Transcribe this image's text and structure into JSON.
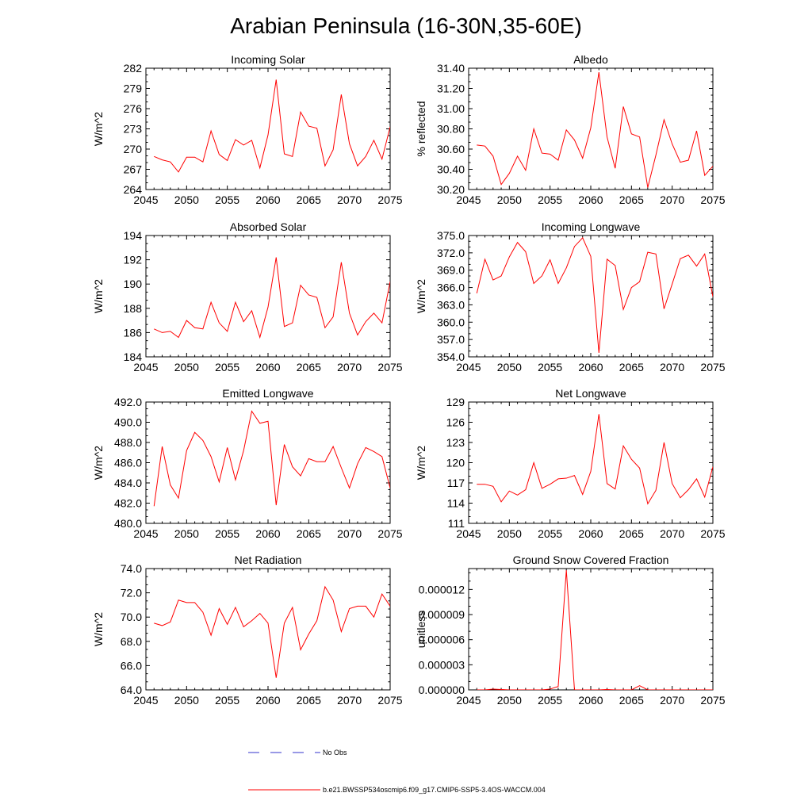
{
  "page_title": "Arabian Peninsula (16-30N,35-60E)",
  "colors": {
    "series": "#ff0000",
    "obs": "#3333cc",
    "axis": "#000000"
  },
  "legend": {
    "obs_label": "No Obs",
    "model_label": "b.e21.BWSSP534oscmip6.f09_g17.CMIP6-SSP5-3.4OS-WACCM.004"
  },
  "chart_data": [
    {
      "type": "line",
      "title": "Incoming Solar",
      "xlabel": "",
      "ylabel": "W/m^2",
      "xlim": [
        2045,
        2075
      ],
      "ylim": [
        264,
        282
      ],
      "xticks": [
        2045,
        2050,
        2055,
        2060,
        2065,
        2070,
        2075
      ],
      "yticks": [
        264,
        267,
        270,
        273,
        276,
        279,
        282
      ],
      "ytick_labels": [
        "264",
        "267",
        "270",
        "273",
        "276",
        "279",
        "282"
      ],
      "x": [
        2046,
        2047,
        2048,
        2049,
        2050,
        2051,
        2052,
        2053,
        2054,
        2055,
        2056,
        2057,
        2058,
        2059,
        2060,
        2061,
        2062,
        2063,
        2064,
        2065,
        2066,
        2067,
        2068,
        2069,
        2070,
        2071,
        2072,
        2073,
        2074,
        2075
      ],
      "values": [
        268.9,
        268.4,
        268.1,
        266.6,
        268.8,
        268.8,
        268.1,
        272.7,
        269.2,
        268.3,
        271.4,
        270.6,
        271.3,
        267.2,
        272.1,
        280.3,
        269.3,
        268.9,
        275.5,
        273.4,
        273.1,
        267.5,
        269.9,
        278.1,
        270.8,
        267.5,
        268.9,
        271.3,
        268.5,
        273.3
      ]
    },
    {
      "type": "line",
      "title": "Albedo",
      "xlabel": "",
      "ylabel": "% reflected",
      "xlim": [
        2045,
        2075
      ],
      "ylim": [
        30.2,
        31.4
      ],
      "xticks": [
        2045,
        2050,
        2055,
        2060,
        2065,
        2070,
        2075
      ],
      "yticks": [
        30.2,
        30.4,
        30.6,
        30.8,
        31.0,
        31.2,
        31.4
      ],
      "ytick_labels": [
        "30.20",
        "30.40",
        "30.60",
        "30.80",
        "31.00",
        "31.20",
        "31.40"
      ],
      "x": [
        2046,
        2047,
        2048,
        2049,
        2050,
        2051,
        2052,
        2053,
        2054,
        2055,
        2056,
        2057,
        2058,
        2059,
        2060,
        2061,
        2062,
        2063,
        2064,
        2065,
        2066,
        2067,
        2068,
        2069,
        2070,
        2071,
        2072,
        2073,
        2074,
        2075
      ],
      "values": [
        30.64,
        30.63,
        30.53,
        30.25,
        30.36,
        30.53,
        30.39,
        30.8,
        30.56,
        30.55,
        30.49,
        30.79,
        30.69,
        30.51,
        30.81,
        31.36,
        30.72,
        30.41,
        31.02,
        30.75,
        30.72,
        30.22,
        30.54,
        30.89,
        30.65,
        30.47,
        30.49,
        30.78,
        30.34,
        30.43
      ]
    },
    {
      "type": "line",
      "title": "Absorbed Solar",
      "xlabel": "",
      "ylabel": "W/m^2",
      "xlim": [
        2045,
        2075
      ],
      "ylim": [
        184,
        194
      ],
      "xticks": [
        2045,
        2050,
        2055,
        2060,
        2065,
        2070,
        2075
      ],
      "yticks": [
        184,
        186,
        188,
        190,
        192,
        194
      ],
      "ytick_labels": [
        "184",
        "186",
        "188",
        "190",
        "192",
        "194"
      ],
      "x": [
        2046,
        2047,
        2048,
        2049,
        2050,
        2051,
        2052,
        2053,
        2054,
        2055,
        2056,
        2057,
        2058,
        2059,
        2060,
        2061,
        2062,
        2063,
        2064,
        2065,
        2066,
        2067,
        2068,
        2069,
        2070,
        2071,
        2072,
        2073,
        2074,
        2075
      ],
      "values": [
        186.3,
        186.0,
        186.1,
        185.6,
        187.0,
        186.4,
        186.3,
        188.5,
        186.8,
        186.1,
        188.5,
        186.9,
        187.8,
        185.6,
        188.1,
        192.2,
        186.5,
        186.8,
        189.9,
        189.1,
        188.9,
        186.4,
        187.3,
        191.8,
        187.6,
        185.8,
        186.9,
        187.6,
        186.8,
        190.2
      ]
    },
    {
      "type": "line",
      "title": "Incoming Longwave",
      "xlabel": "",
      "ylabel": "W/m^2",
      "xlim": [
        2045,
        2075
      ],
      "ylim": [
        354.0,
        375.0
      ],
      "xticks": [
        2045,
        2050,
        2055,
        2060,
        2065,
        2070,
        2075
      ],
      "yticks": [
        354,
        357,
        360,
        363,
        366,
        369,
        372,
        375
      ],
      "ytick_labels": [
        "354.0",
        "357.0",
        "360.0",
        "363.0",
        "366.0",
        "369.0",
        "372.0",
        "375.0"
      ],
      "x": [
        2046,
        2047,
        2048,
        2049,
        2050,
        2051,
        2052,
        2053,
        2054,
        2055,
        2056,
        2057,
        2058,
        2059,
        2060,
        2061,
        2062,
        2063,
        2064,
        2065,
        2066,
        2067,
        2068,
        2069,
        2070,
        2071,
        2072,
        2073,
        2074,
        2075
      ],
      "values": [
        365.0,
        370.9,
        367.3,
        368.0,
        371.3,
        373.8,
        372.2,
        366.7,
        368.0,
        370.8,
        366.7,
        369.4,
        373.1,
        374.6,
        371.4,
        354.7,
        370.9,
        369.8,
        362.2,
        366.0,
        367.0,
        372.1,
        371.8,
        362.3,
        366.6,
        371.0,
        371.6,
        369.7,
        371.8,
        364.4
      ]
    },
    {
      "type": "line",
      "title": "Emitted Longwave",
      "xlabel": "",
      "ylabel": "W/m^2",
      "xlim": [
        2045,
        2075
      ],
      "ylim": [
        480.0,
        492.0
      ],
      "xticks": [
        2045,
        2050,
        2055,
        2060,
        2065,
        2070,
        2075
      ],
      "yticks": [
        480,
        482,
        484,
        486,
        488,
        490,
        492
      ],
      "ytick_labels": [
        "480.0",
        "482.0",
        "484.0",
        "486.0",
        "488.0",
        "490.0",
        "492.0"
      ],
      "x": [
        2046,
        2047,
        2048,
        2049,
        2050,
        2051,
        2052,
        2053,
        2054,
        2055,
        2056,
        2057,
        2058,
        2059,
        2060,
        2061,
        2062,
        2063,
        2064,
        2065,
        2066,
        2067,
        2068,
        2069,
        2070,
        2071,
        2072,
        2073,
        2074,
        2075
      ],
      "values": [
        481.7,
        487.6,
        483.8,
        482.5,
        487.2,
        489.0,
        488.2,
        486.6,
        484.1,
        487.5,
        484.3,
        487.2,
        491.1,
        489.9,
        490.1,
        481.8,
        487.8,
        485.6,
        484.7,
        486.4,
        486.1,
        486.1,
        487.6,
        485.5,
        483.5,
        485.9,
        487.5,
        487.1,
        486.6,
        483.5
      ]
    },
    {
      "type": "line",
      "title": "Net Longwave",
      "xlabel": "",
      "ylabel": "W/m^2",
      "xlim": [
        2045,
        2075
      ],
      "ylim": [
        111,
        129
      ],
      "xticks": [
        2045,
        2050,
        2055,
        2060,
        2065,
        2070,
        2075
      ],
      "yticks": [
        111,
        114,
        117,
        120,
        123,
        126,
        129
      ],
      "ytick_labels": [
        "111",
        "114",
        "117",
        "120",
        "123",
        "126",
        "129"
      ],
      "x": [
        2046,
        2047,
        2048,
        2049,
        2050,
        2051,
        2052,
        2053,
        2054,
        2055,
        2056,
        2057,
        2058,
        2059,
        2060,
        2061,
        2062,
        2063,
        2064,
        2065,
        2066,
        2067,
        2068,
        2069,
        2070,
        2071,
        2072,
        2073,
        2074,
        2075
      ],
      "values": [
        116.8,
        116.8,
        116.5,
        114.2,
        115.8,
        115.2,
        116.0,
        120.0,
        116.2,
        116.8,
        117.6,
        117.7,
        118.1,
        115.3,
        118.7,
        127.2,
        116.9,
        116.1,
        122.5,
        120.5,
        119.2,
        113.9,
        115.9,
        123.0,
        116.9,
        114.8,
        116.0,
        117.6,
        114.9,
        119.4
      ]
    },
    {
      "type": "line",
      "title": "Net Radiation",
      "xlabel": "",
      "ylabel": "W/m^2",
      "xlim": [
        2045,
        2075
      ],
      "ylim": [
        64.0,
        74.0
      ],
      "xticks": [
        2045,
        2050,
        2055,
        2060,
        2065,
        2070,
        2075
      ],
      "yticks": [
        64,
        66,
        68,
        70,
        72,
        74
      ],
      "ytick_labels": [
        "64.0",
        "66.0",
        "68.0",
        "70.0",
        "72.0",
        "74.0"
      ],
      "x": [
        2046,
        2047,
        2048,
        2049,
        2050,
        2051,
        2052,
        2053,
        2054,
        2055,
        2056,
        2057,
        2058,
        2059,
        2060,
        2061,
        2062,
        2063,
        2064,
        2065,
        2066,
        2067,
        2068,
        2069,
        2070,
        2071,
        2072,
        2073,
        2074,
        2075
      ],
      "values": [
        69.5,
        69.3,
        69.6,
        71.4,
        71.2,
        71.2,
        70.4,
        68.5,
        70.7,
        69.4,
        70.8,
        69.2,
        69.7,
        70.3,
        69.5,
        65.0,
        69.5,
        70.8,
        67.3,
        68.6,
        69.7,
        72.5,
        71.4,
        68.8,
        70.7,
        70.9,
        70.9,
        70.0,
        71.9,
        70.9
      ]
    },
    {
      "type": "line",
      "title": "Ground Snow Covered Fraction",
      "xlabel": "",
      "ylabel": "unitless",
      "xlim": [
        2045,
        2075
      ],
      "ylim": [
        0.0,
        1.45e-05
      ],
      "xticks": [
        2045,
        2050,
        2055,
        2060,
        2065,
        2070,
        2075
      ],
      "yticks": [
        0.0,
        3e-06,
        6e-06,
        9e-06,
        1.2e-05
      ],
      "ytick_labels": [
        "0.000000",
        "0.000003",
        "0.000006",
        "0.000009",
        "0.000012"
      ],
      "x": [
        2046,
        2047,
        2048,
        2049,
        2050,
        2051,
        2052,
        2053,
        2054,
        2055,
        2056,
        2057,
        2058,
        2059,
        2060,
        2061,
        2062,
        2063,
        2064,
        2065,
        2066,
        2067,
        2068,
        2069,
        2070,
        2071,
        2072,
        2073,
        2074,
        2075
      ],
      "values": [
        0,
        0,
        1e-07,
        5e-08,
        0,
        0,
        0,
        0,
        0,
        1e-07,
        4e-07,
        1.43e-05,
        0,
        0,
        0,
        0,
        5e-08,
        0,
        0,
        0,
        5e-07,
        0,
        0,
        0,
        0,
        0,
        0,
        0,
        0,
        0
      ]
    }
  ]
}
